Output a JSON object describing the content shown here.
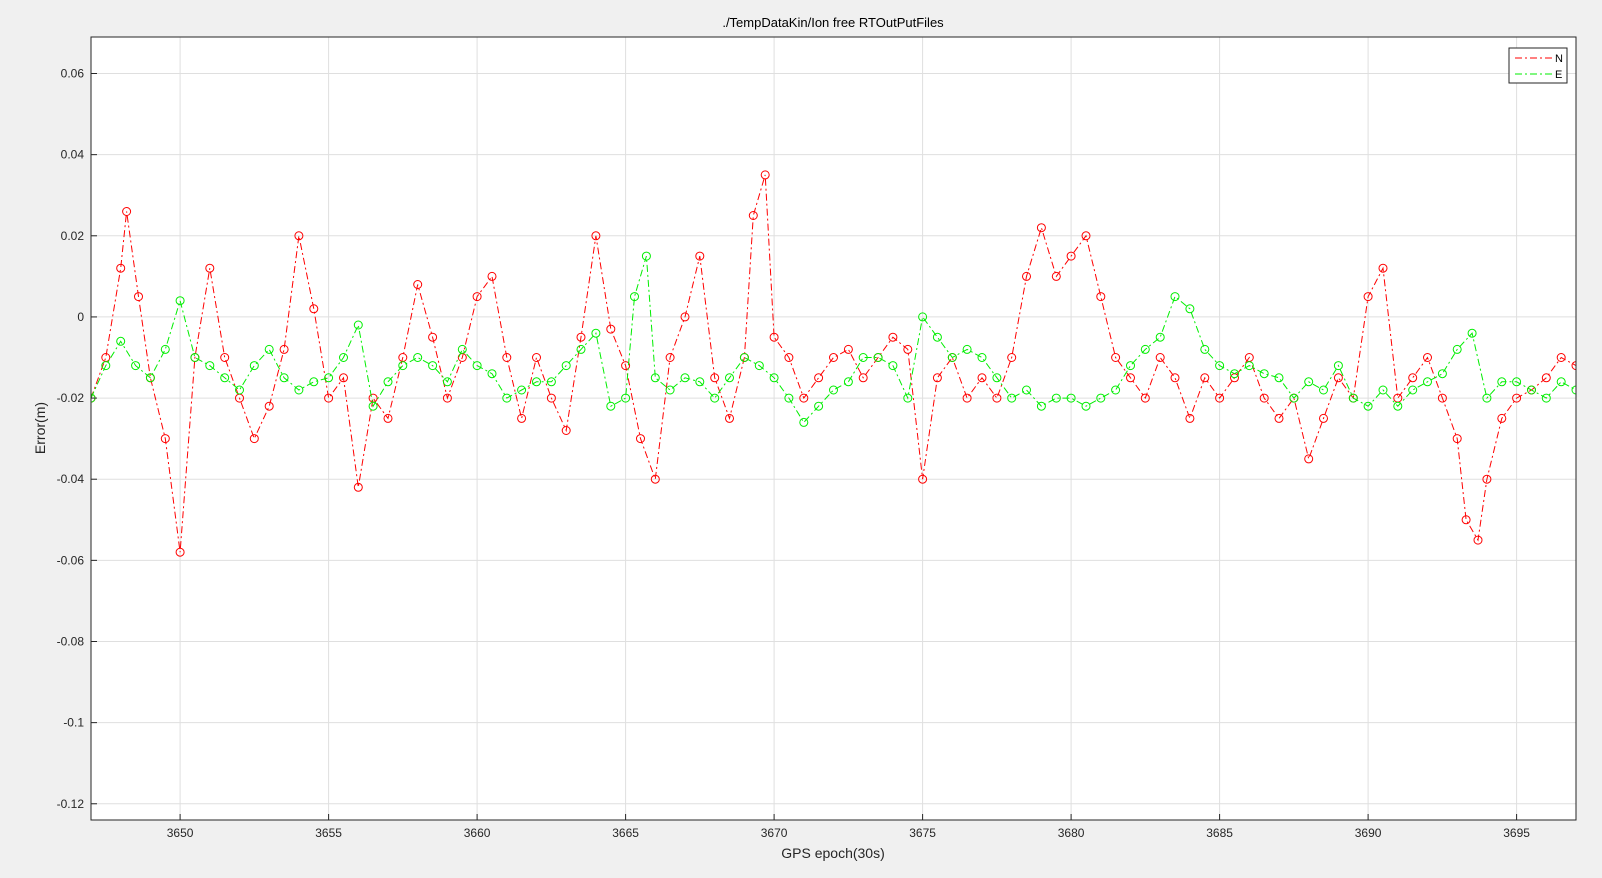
{
  "chart_data": {
    "type": "line",
    "title": "./TempDataKin/Ion free RTOutPutFiles",
    "xlabel": "GPS epoch(30s)",
    "ylabel": "Error(m)",
    "xlim": [
      3647,
      3697
    ],
    "ylim": [
      -0.124,
      0.069
    ],
    "grid": true,
    "legend_position": "top-right",
    "x_ticks": [
      3650,
      3655,
      3660,
      3665,
      3670,
      3675,
      3680,
      3685,
      3690,
      3695
    ],
    "x_tick_labels": [
      "3650",
      "3655",
      "3660",
      "3665",
      "3670",
      "3675",
      "3680",
      "3685",
      "3690",
      "3695"
    ],
    "y_ticks": [
      0.06,
      0.04,
      0.02,
      0,
      -0.02,
      -0.04,
      -0.06,
      -0.08,
      -0.1,
      -0.12
    ],
    "y_tick_labels": [
      "0.06",
      "0.04",
      "0.02",
      "0",
      "-0.02",
      "-0.04",
      "-0.06",
      "-0.08",
      "-0.1",
      "-0.12"
    ],
    "series": [
      {
        "name": "N",
        "color": "#ff0000",
        "line_style": "dashdot",
        "x": [
          3647.0,
          3647.5,
          3648.0,
          3648.2,
          3648.6,
          3649.0,
          3649.5,
          3650.0,
          3650.5,
          3651.0,
          3651.5,
          3652.0,
          3652.5,
          3653.0,
          3653.5,
          3654.0,
          3654.5,
          3655.0,
          3655.5,
          3656.0,
          3656.5,
          3657.0,
          3657.5,
          3658.0,
          3658.5,
          3659.0,
          3659.5,
          3660.0,
          3660.5,
          3661.0,
          3661.5,
          3662.0,
          3662.5,
          3663.0,
          3663.5,
          3664.0,
          3664.5,
          3665.0,
          3665.5,
          3666.0,
          3666.5,
          3667.0,
          3667.5,
          3668.0,
          3668.5,
          3669.0,
          3669.3,
          3669.7,
          3670.0,
          3670.5,
          3671.0,
          3671.5,
          3672.0,
          3672.5,
          3673.0,
          3673.5,
          3674.0,
          3674.5,
          3675.0,
          3675.5,
          3676.0,
          3676.5,
          3677.0,
          3677.5,
          3678.0,
          3678.5,
          3679.0,
          3679.5,
          3680.0,
          3680.5,
          3681.0,
          3681.5,
          3682.0,
          3682.5,
          3683.0,
          3683.5,
          3684.0,
          3684.5,
          3685.0,
          3685.5,
          3686.0,
          3686.5,
          3687.0,
          3687.5,
          3688.0,
          3688.5,
          3689.0,
          3689.5,
          3690.0,
          3690.5,
          3691.0,
          3691.5,
          3692.0,
          3692.5,
          3693.0,
          3693.3,
          3693.7,
          3694.0,
          3694.5,
          3695.0,
          3695.5,
          3696.0,
          3696.5,
          3697.0
        ],
        "y": [
          -0.02,
          -0.01,
          0.012,
          0.026,
          0.005,
          -0.015,
          -0.03,
          -0.058,
          -0.01,
          0.012,
          -0.01,
          -0.02,
          -0.03,
          -0.022,
          -0.008,
          0.02,
          0.002,
          -0.02,
          -0.015,
          -0.042,
          -0.02,
          -0.025,
          -0.01,
          0.008,
          -0.005,
          -0.02,
          -0.01,
          0.005,
          0.01,
          -0.01,
          -0.025,
          -0.01,
          -0.02,
          -0.028,
          -0.005,
          0.02,
          -0.003,
          -0.012,
          -0.03,
          -0.04,
          -0.01,
          0.0,
          0.015,
          -0.015,
          -0.025,
          -0.01,
          0.025,
          0.035,
          -0.005,
          -0.01,
          -0.02,
          -0.015,
          -0.01,
          -0.008,
          -0.015,
          -0.01,
          -0.005,
          -0.008,
          -0.04,
          -0.015,
          -0.01,
          -0.02,
          -0.015,
          -0.02,
          -0.01,
          0.01,
          0.022,
          0.01,
          0.015,
          0.02,
          0.005,
          -0.01,
          -0.015,
          -0.02,
          -0.01,
          -0.015,
          -0.025,
          -0.015,
          -0.02,
          -0.015,
          -0.01,
          -0.02,
          -0.025,
          -0.02,
          -0.035,
          -0.025,
          -0.015,
          -0.02,
          0.005,
          0.012,
          -0.02,
          -0.015,
          -0.01,
          -0.02,
          -0.03,
          -0.05,
          -0.055,
          -0.04,
          -0.025,
          -0.02,
          -0.018,
          -0.015,
          -0.01,
          -0.012
        ]
      },
      {
        "name": "E",
        "color": "#00ee00",
        "line_style": "dashdot",
        "x": [
          3647.0,
          3647.5,
          3648.0,
          3648.5,
          3649.0,
          3649.5,
          3650.0,
          3650.5,
          3651.0,
          3651.5,
          3652.0,
          3652.5,
          3653.0,
          3653.5,
          3654.0,
          3654.5,
          3655.0,
          3655.5,
          3656.0,
          3656.5,
          3657.0,
          3657.5,
          3658.0,
          3658.5,
          3659.0,
          3659.5,
          3660.0,
          3660.5,
          3661.0,
          3661.5,
          3662.0,
          3662.5,
          3663.0,
          3663.5,
          3664.0,
          3664.5,
          3665.0,
          3665.3,
          3665.7,
          3666.0,
          3666.5,
          3667.0,
          3667.5,
          3668.0,
          3668.5,
          3669.0,
          3669.5,
          3670.0,
          3670.5,
          3671.0,
          3671.5,
          3672.0,
          3672.5,
          3673.0,
          3673.5,
          3674.0,
          3674.5,
          3675.0,
          3675.5,
          3676.0,
          3676.5,
          3677.0,
          3677.5,
          3678.0,
          3678.5,
          3679.0,
          3679.5,
          3680.0,
          3680.5,
          3681.0,
          3681.5,
          3682.0,
          3682.5,
          3683.0,
          3683.5,
          3684.0,
          3684.5,
          3685.0,
          3685.5,
          3686.0,
          3686.5,
          3687.0,
          3687.5,
          3688.0,
          3688.5,
          3689.0,
          3689.5,
          3690.0,
          3690.5,
          3691.0,
          3691.5,
          3692.0,
          3692.5,
          3693.0,
          3693.5,
          3694.0,
          3694.5,
          3695.0,
          3695.5,
          3696.0,
          3696.5,
          3697.0
        ],
        "y": [
          -0.02,
          -0.012,
          -0.006,
          -0.012,
          -0.015,
          -0.008,
          0.004,
          -0.01,
          -0.012,
          -0.015,
          -0.018,
          -0.012,
          -0.008,
          -0.015,
          -0.018,
          -0.016,
          -0.015,
          -0.01,
          -0.002,
          -0.022,
          -0.016,
          -0.012,
          -0.01,
          -0.012,
          -0.016,
          -0.008,
          -0.012,
          -0.014,
          -0.02,
          -0.018,
          -0.016,
          -0.016,
          -0.012,
          -0.008,
          -0.004,
          -0.022,
          -0.02,
          0.005,
          0.015,
          -0.015,
          -0.018,
          -0.015,
          -0.016,
          -0.02,
          -0.015,
          -0.01,
          -0.012,
          -0.015,
          -0.02,
          -0.026,
          -0.022,
          -0.018,
          -0.016,
          -0.01,
          -0.01,
          -0.012,
          -0.02,
          0.0,
          -0.005,
          -0.01,
          -0.008,
          -0.01,
          -0.015,
          -0.02,
          -0.018,
          -0.022,
          -0.02,
          -0.02,
          -0.022,
          -0.02,
          -0.018,
          -0.012,
          -0.008,
          -0.005,
          0.005,
          0.002,
          -0.008,
          -0.012,
          -0.014,
          -0.012,
          -0.014,
          -0.015,
          -0.02,
          -0.016,
          -0.018,
          -0.012,
          -0.02,
          -0.022,
          -0.018,
          -0.022,
          -0.018,
          -0.016,
          -0.014,
          -0.008,
          -0.004,
          -0.02,
          -0.016,
          -0.016,
          -0.018,
          -0.02,
          -0.016,
          -0.018
        ]
      }
    ]
  }
}
